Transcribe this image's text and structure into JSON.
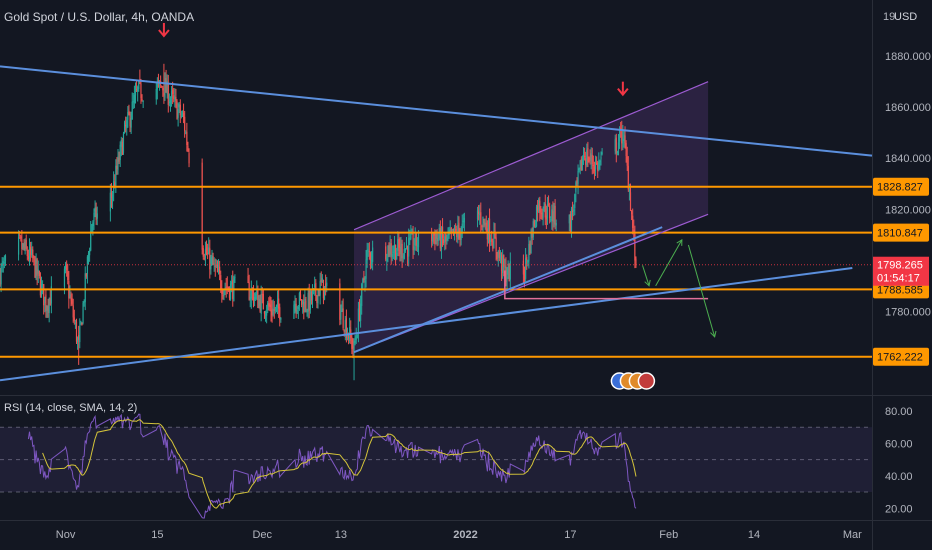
{
  "header": {
    "title": "Gold Spot / U.S. Dollar, 4h, OANDA",
    "currency": "USD",
    "top_price_partial": "19"
  },
  "colors": {
    "background": "#131722",
    "grid": "#1e222d",
    "candle_up": "#26a69a",
    "candle_down": "#ef5350",
    "trendline": "#5b8fdd",
    "level": "#ff9800",
    "channel": "#9c5bd1",
    "arrow_red": "#f23645",
    "rsi": "#7e57c2",
    "rsi_ma": "#d4c43a",
    "pink_line": "#e0709a",
    "projection": "#4caf50",
    "current_price": "#f23645"
  },
  "chart_data": [
    {
      "type": "candlestick",
      "title": "Gold Spot / U.S. Dollar, 4h, OANDA",
      "xlabel": "",
      "ylabel": "",
      "ylim": [
        1748,
        1902
      ],
      "y_ticks": [
        1780,
        1800,
        1820,
        1840,
        1860,
        1880
      ],
      "y_tick_labels": [
        "1780.000",
        "1800.000",
        "1820.000",
        "1840.000",
        "1860.000",
        "1880.000"
      ],
      "x_ticks": [
        "Nov",
        "15",
        "Dec",
        "13",
        "2022",
        "17",
        "Feb",
        "14",
        "Mar"
      ],
      "grid": false,
      "keyframes": [
        [
          "2021-10-22",
          1795
        ],
        [
          "2021-10-25",
          1806
        ],
        [
          "2021-10-27",
          1800
        ],
        [
          "2021-10-29",
          1783
        ],
        [
          "2021-11-01",
          1795
        ],
        [
          "2021-11-03",
          1766
        ],
        [
          "2021-11-05",
          1815
        ],
        [
          "2021-11-08",
          1825
        ],
        [
          "2021-11-10",
          1850
        ],
        [
          "2021-11-12",
          1866
        ],
        [
          "2021-11-16",
          1868
        ],
        [
          "2021-11-19",
          1855
        ],
        [
          "2021-11-22",
          1805
        ],
        [
          "2021-11-25",
          1790
        ],
        [
          "2021-11-29",
          1788
        ],
        [
          "2021-12-01",
          1783
        ],
        [
          "2021-12-03",
          1780
        ],
        [
          "2021-12-06",
          1784
        ],
        [
          "2021-12-08",
          1783
        ],
        [
          "2021-12-10",
          1790
        ],
        [
          "2021-12-13",
          1780
        ],
        [
          "2021-12-15",
          1765
        ],
        [
          "2021-12-17",
          1802
        ],
        [
          "2021-12-20",
          1805
        ],
        [
          "2021-12-22",
          1804
        ],
        [
          "2021-12-27",
          1810
        ],
        [
          "2021-12-29",
          1807
        ],
        [
          "2022-01-03",
          1818
        ],
        [
          "2022-01-05",
          1810
        ],
        [
          "2022-01-07",
          1795
        ],
        [
          "2022-01-10",
          1796
        ],
        [
          "2022-01-12",
          1822
        ],
        [
          "2022-01-14",
          1818
        ],
        [
          "2022-01-17",
          1815
        ],
        [
          "2022-01-19",
          1842
        ],
        [
          "2022-01-21",
          1837
        ],
        [
          "2022-01-24",
          1845
        ],
        [
          "2022-01-25",
          1850
        ],
        [
          "2022-01-26",
          1828
        ],
        [
          "2022-01-27",
          1797
        ]
      ],
      "levels": [
        {
          "name": "1828.827",
          "value": 1828.827
        },
        {
          "name": "1810.847",
          "value": 1810.847
        },
        {
          "name": "1788.585",
          "value": 1788.585
        },
        {
          "name": "1762.222",
          "value": 1762.222
        }
      ],
      "current_price": {
        "value": "1798.265",
        "countdown": "01:54:17"
      },
      "annotations": [
        "down arrow at Nov 16 high",
        "down arrow at Jan 25 high",
        "rising channel Dec 15 - Feb 7",
        "descending trendline",
        "ascending trendline",
        "projected path arrows"
      ]
    },
    {
      "type": "line",
      "title": "RSI (14, close, SMA, 14, 2)",
      "xlabel": "",
      "ylabel": "",
      "ylim": [
        14,
        88
      ],
      "y_ticks": [
        20,
        40,
        60,
        80
      ],
      "y_tick_labels": [
        "20.00",
        "40.00",
        "60.00",
        "80.00"
      ],
      "bands": [
        30,
        50,
        70
      ],
      "series": [
        {
          "name": "RSI",
          "note": "derived from price candles"
        },
        {
          "name": "SMA",
          "note": "14-period moving average of RSI"
        }
      ]
    }
  ]
}
